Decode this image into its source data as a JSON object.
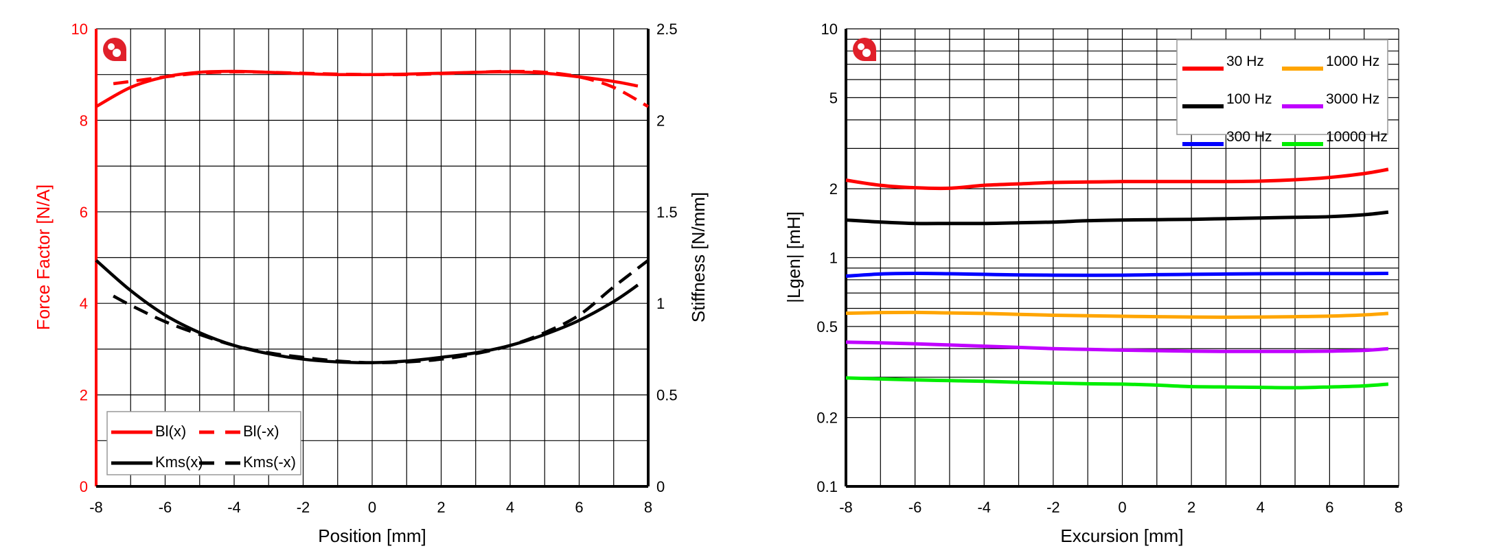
{
  "colors": {
    "red": "#ff0000",
    "black": "#000000",
    "blue": "#0000ff",
    "orange": "#ffa500",
    "purple": "#c000ff",
    "green": "#00ee00",
    "logo": "#e0202a",
    "grid": "#000000"
  },
  "chart_data": [
    {
      "type": "line",
      "xlabel": "Position [mm]",
      "ylabel": "Force Factor [N/A]",
      "y2label": "Stiffness [N/mm]",
      "xlim": [
        -8,
        8
      ],
      "ylim": [
        0,
        10
      ],
      "y2lim": [
        0,
        2.5
      ],
      "xticks": [
        "-8",
        "-6",
        "-4",
        "-2",
        "0",
        "2",
        "4",
        "6",
        "8"
      ],
      "yticks": [
        "0",
        "2",
        "4",
        "6",
        "8",
        "10"
      ],
      "y2ticks": [
        "0",
        "0.5",
        "1",
        "1.5",
        "2",
        "2.5"
      ],
      "grid": true,
      "legend_position": "bottom-left",
      "logo": "red-logo-icon",
      "series": [
        {
          "name": "Bl(x)",
          "axis": "left",
          "style": "solid",
          "color": "#ff0000",
          "x": [
            -8,
            -7,
            -6,
            -5,
            -4,
            -3,
            -2,
            -1,
            0,
            1,
            2,
            3,
            4,
            5,
            6,
            7,
            7.7
          ],
          "y": [
            8.3,
            8.72,
            8.95,
            9.05,
            9.07,
            9.05,
            9.02,
            9.0,
            9.0,
            9.01,
            9.03,
            9.05,
            9.06,
            9.03,
            8.95,
            8.85,
            8.75
          ]
        },
        {
          "name": "Bl(-x)",
          "axis": "left",
          "style": "dashed",
          "color": "#ff0000",
          "x": [
            -7.5,
            -7,
            -6,
            -5,
            -4,
            -3,
            -2,
            -1,
            0,
            1,
            2,
            3,
            4,
            5,
            6,
            7,
            8
          ],
          "y": [
            8.8,
            8.85,
            8.95,
            9.03,
            9.06,
            9.05,
            9.03,
            9.01,
            9.0,
            9.0,
            9.02,
            9.05,
            9.07,
            9.05,
            8.95,
            8.72,
            8.3
          ]
        },
        {
          "name": "Kms(x)",
          "axis": "right",
          "style": "solid",
          "color": "#000000",
          "x": [
            -8,
            -7,
            -6,
            -5,
            -4,
            -3,
            -2,
            -1,
            0,
            1,
            2,
            3,
            4,
            5,
            6,
            7,
            7.7
          ],
          "y": [
            1.235,
            1.07,
            0.936,
            0.84,
            0.77,
            0.725,
            0.695,
            0.68,
            0.676,
            0.685,
            0.705,
            0.73,
            0.77,
            0.83,
            0.907,
            1.01,
            1.1
          ]
        },
        {
          "name": "Kms(-x)",
          "axis": "right",
          "style": "dashed",
          "color": "#000000",
          "x": [
            -7.5,
            -7,
            -6,
            -5,
            -4,
            -3,
            -2,
            -1,
            0,
            1,
            2,
            3,
            4,
            5,
            6,
            7,
            8
          ],
          "y": [
            1.04,
            0.99,
            0.9,
            0.83,
            0.77,
            0.73,
            0.705,
            0.685,
            0.676,
            0.68,
            0.695,
            0.725,
            0.77,
            0.84,
            0.936,
            1.09,
            1.235
          ]
        }
      ]
    },
    {
      "type": "line",
      "xlabel": "Excursion [mm]",
      "ylabel": "|Lgen| [mH]",
      "xlim": [
        -8,
        8
      ],
      "ylim": [
        0.1,
        10
      ],
      "yscale": "log",
      "xticks": [
        "-8",
        "-6",
        "-4",
        "-2",
        "0",
        "2",
        "4",
        "6",
        "8"
      ],
      "yticks": [
        "0.1",
        "0.2",
        "0.5",
        "1",
        "2",
        "5",
        "10"
      ],
      "grid": true,
      "legend_position": "top-right",
      "logo": "red-logo-icon",
      "x": [
        -8,
        -7,
        -6,
        -5,
        -4,
        -3,
        -2,
        -1,
        0,
        1,
        2,
        3,
        4,
        5,
        6,
        7,
        7.7
      ],
      "series": [
        {
          "name": "30 Hz",
          "color": "#ff0000",
          "y": [
            2.18,
            2.07,
            2.02,
            2.01,
            2.07,
            2.1,
            2.13,
            2.14,
            2.15,
            2.15,
            2.15,
            2.15,
            2.16,
            2.19,
            2.24,
            2.33,
            2.43
          ]
        },
        {
          "name": "100 Hz",
          "color": "#000000",
          "y": [
            1.46,
            1.43,
            1.41,
            1.41,
            1.41,
            1.42,
            1.43,
            1.45,
            1.46,
            1.465,
            1.47,
            1.48,
            1.49,
            1.5,
            1.51,
            1.54,
            1.58
          ]
        },
        {
          "name": "300 Hz",
          "color": "#0000ff",
          "y": [
            0.83,
            0.848,
            0.853,
            0.85,
            0.845,
            0.84,
            0.838,
            0.837,
            0.838,
            0.842,
            0.845,
            0.848,
            0.85,
            0.851,
            0.852,
            0.852,
            0.853
          ]
        },
        {
          "name": "1000 Hz",
          "color": "#ffa500",
          "y": [
            0.571,
            0.575,
            0.576,
            0.573,
            0.57,
            0.565,
            0.56,
            0.557,
            0.554,
            0.552,
            0.55,
            0.549,
            0.55,
            0.552,
            0.555,
            0.562,
            0.57
          ]
        },
        {
          "name": "3000 Hz",
          "color": "#c000ff",
          "y": [
            0.427,
            0.424,
            0.42,
            0.415,
            0.41,
            0.405,
            0.4,
            0.397,
            0.394,
            0.392,
            0.39,
            0.389,
            0.389,
            0.389,
            0.39,
            0.393,
            0.4
          ]
        },
        {
          "name": "10000 Hz",
          "color": "#00ee00",
          "y": [
            0.298,
            0.295,
            0.292,
            0.29,
            0.288,
            0.285,
            0.283,
            0.281,
            0.28,
            0.277,
            0.273,
            0.272,
            0.271,
            0.27,
            0.272,
            0.275,
            0.28
          ]
        }
      ]
    }
  ]
}
